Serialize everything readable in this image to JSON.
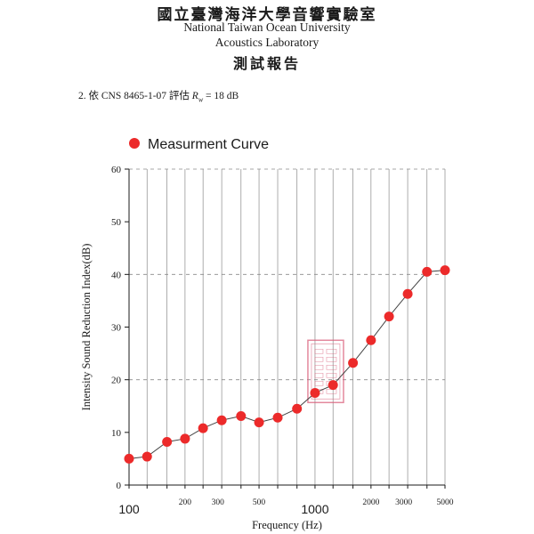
{
  "header": {
    "title_zh": "國立臺灣海洋大學音響實驗室",
    "title_en_line1": "National Taiwan Ocean University",
    "title_en_line2": "Acoustics Laboratory",
    "report_zh": "測試報告"
  },
  "note": {
    "prefix": "2. 依 CNS 8465-1-07 評估",
    "rw_symbol": "R",
    "rw_sub": "w",
    "rw_value": "= 18 dB"
  },
  "colors": {
    "marker": "#ec2a2a",
    "line": "#444444",
    "grid": "#8a8a8a",
    "stamp": "#d9607c"
  },
  "chart_data": {
    "type": "line",
    "xscale": "log",
    "xlabel": "Frequency (Hz)",
    "ylabel": "Intensity Sound Reduction Index(dB)",
    "xlim": [
      100,
      5000
    ],
    "ylim": [
      0,
      60
    ],
    "yticks": [
      0,
      10,
      20,
      30,
      40,
      50,
      60
    ],
    "y_dashed_gridlines": [
      20,
      40,
      60
    ],
    "x_gridlines": [
      125,
      160,
      200,
      250,
      315,
      400,
      500,
      630,
      800,
      1000,
      1250,
      1600,
      2000,
      2500,
      3150,
      4000,
      5000
    ],
    "xtick_labels_large": [
      {
        "x": 100,
        "label": "100"
      },
      {
        "x": 1000,
        "label": "1000"
      }
    ],
    "xtick_labels_small": [
      {
        "x": 200,
        "label": "200"
      },
      {
        "x": 300,
        "label": "300"
      },
      {
        "x": 500,
        "label": "500"
      },
      {
        "x": 2000,
        "label": "2000"
      },
      {
        "x": 3000,
        "label": "3000"
      },
      {
        "x": 5000,
        "label": "5000"
      }
    ],
    "legend": {
      "label": "Measurment Curve",
      "position": "top-left"
    },
    "series": [
      {
        "name": "Measurment Curve",
        "x": [
          100,
          125,
          160,
          200,
          250,
          315,
          400,
          500,
          630,
          800,
          1000,
          1250,
          1600,
          2000,
          2500,
          3150,
          4000,
          5000
        ],
        "y": [
          5.0,
          5.4,
          8.2,
          8.8,
          10.8,
          12.3,
          13.1,
          11.9,
          12.8,
          14.5,
          17.5,
          19.0,
          23.2,
          27.5,
          32.0,
          36.3,
          40.5,
          40.8
        ]
      }
    ]
  }
}
